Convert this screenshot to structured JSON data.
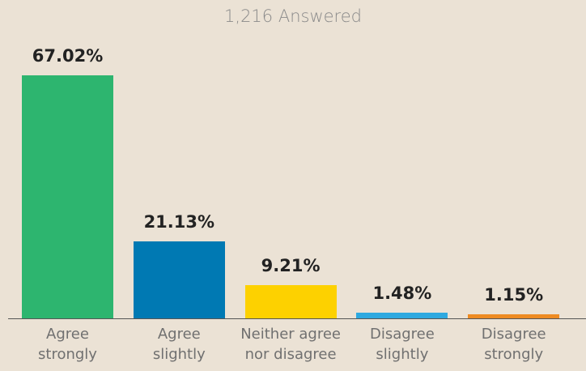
{
  "chart_data": {
    "type": "bar",
    "title": "1,216 Answered",
    "categories": [
      "Agree\nstrongly",
      "Agree\nslightly",
      "Neither agree\nnor disagree",
      "Disagree\nslightly",
      "Disagree\nstrongly"
    ],
    "values": [
      67.02,
      21.13,
      9.21,
      1.48,
      1.15
    ],
    "value_labels": [
      "67.02%",
      "21.13%",
      "9.21%",
      "1.48%",
      "1.15%"
    ],
    "colors": [
      "#2db56f",
      "#0079b3",
      "#fdd100",
      "#2ea9e0",
      "#ee8b22"
    ]
  }
}
